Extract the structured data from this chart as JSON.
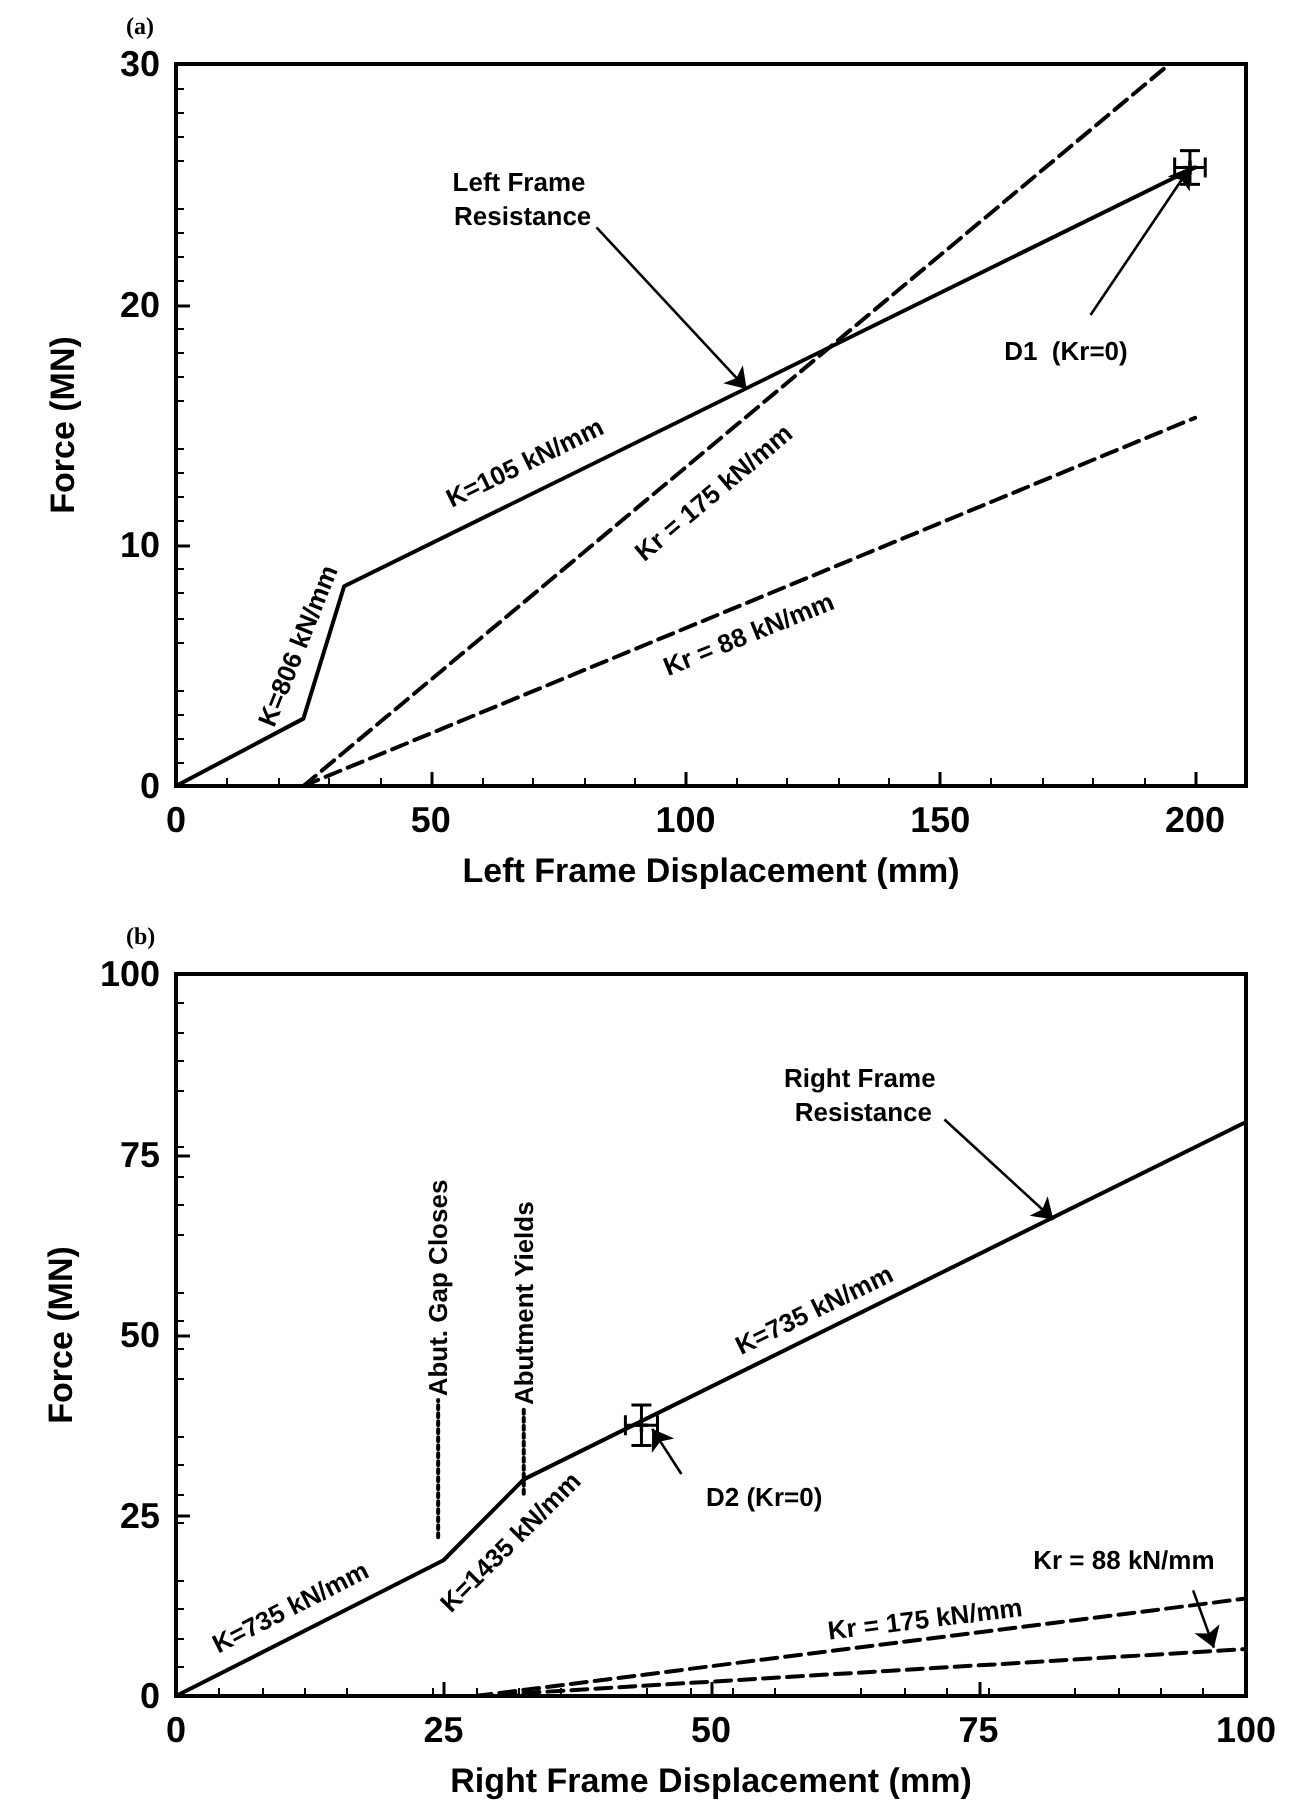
{
  "chart_data": [
    {
      "type": "line",
      "title": "(a)",
      "xlabel": "Left Frame Displacement (mm)",
      "ylabel": "Force (MN)",
      "xlim": [
        0,
        210
      ],
      "xticks": [
        0,
        50,
        100,
        150,
        200
      ],
      "ylim": [
        0,
        30
      ],
      "yticks": [
        0,
        10,
        20,
        30
      ],
      "grid": false,
      "marker": "none",
      "series": [
        {
          "x": [
            0,
            25,
            33,
            200
          ],
          "values": [
            0,
            2.8,
            8.3,
            25.7
          ],
          "color": "#000000",
          "line_style": "solid"
        },
        {
          "x": [
            25,
            195
          ],
          "values": [
            0,
            30
          ],
          "color": "#000000",
          "line_style": "dashed"
        },
        {
          "x": [
            25,
            200
          ],
          "values": [
            0,
            15.3
          ],
          "color": "#000000",
          "line_style": "dashed"
        },
        {
          "type": "scatter",
          "x": [
            199
          ],
          "values": [
            25.7
          ],
          "errors": [
            0.7
          ],
          "xerrors": [
            3
          ],
          "color": "#000000",
          "marker": "cross"
        }
      ],
      "annotations": [
        {
          "text": "Left Frame Resistance",
          "x": 112,
          "y": 16.5
        },
        {
          "text": "D1  (Kr=0)",
          "x": 199,
          "y": 25.7
        },
        {
          "text": "K=806 kN/mm",
          "x": 29,
          "y": 5.5
        },
        {
          "text": "K=105 kN/mm",
          "x": 70,
          "y": 12.2
        },
        {
          "text": "Kr = 175 kN/mm",
          "x": 100,
          "y": 13.2
        },
        {
          "text": "Kr = 88 kN/mm",
          "x": 110,
          "y": 7.4
        }
      ]
    },
    {
      "type": "line",
      "title": "(b)",
      "xlabel": "Right Frame Displacement (mm)",
      "ylabel": "Force (MN)",
      "xlim": [
        0,
        100
      ],
      "xticks": [
        0,
        25,
        50,
        75,
        100
      ],
      "ylim": [
        0,
        100
      ],
      "yticks": [
        0,
        25,
        50,
        75,
        100
      ],
      "grid": false,
      "marker": "none",
      "series": [
        {
          "x": [
            0,
            25,
            32.5,
            100
          ],
          "values": [
            0,
            18.8,
            30,
            79.5
          ],
          "color": "#000000",
          "line_style": "solid"
        },
        {
          "x": [
            28,
            100
          ],
          "values": [
            0,
            13.5
          ],
          "color": "#000000",
          "line_style": "dashed"
        },
        {
          "x": [
            28,
            100
          ],
          "values": [
            0,
            6.5
          ],
          "color": "#000000",
          "line_style": "dashed"
        },
        {
          "x": [
            24.5,
            24.5
          ],
          "values": [
            22,
            41
          ],
          "color": "#000000",
          "line_style": "dotted"
        },
        {
          "x": [
            32.5,
            32.5
          ],
          "values": [
            28,
            40
          ],
          "color": "#000000",
          "line_style": "dotted"
        },
        {
          "type": "scatter",
          "x": [
            43.5
          ],
          "values": [
            37.5
          ],
          "errors": [
            2.8
          ],
          "xerrors": [
            1.5
          ],
          "color": "#000000",
          "marker": "cross"
        }
      ],
      "annotations": [
        {
          "text": "Right Frame Resistance",
          "x": 82,
          "y": 66
        },
        {
          "text": "D2 (Kr=0)",
          "x": 44.5,
          "y": 37
        },
        {
          "text": "Kr = 88 kN/mm",
          "x": 97,
          "y": 6.7
        },
        {
          "text": "Kr = 175 kN/mm",
          "x": 70,
          "y": 7.9
        },
        {
          "text": "Abut. Gap Closes",
          "x": 24.5,
          "y": 41
        },
        {
          "text": "Abutment Yields",
          "x": 32.5,
          "y": 40
        },
        {
          "text": "K=735 kN/mm",
          "x": 12,
          "y": 9
        },
        {
          "text": "K=1435 kN/mm",
          "x": 29,
          "y": 24.4
        },
        {
          "text": "K=735 kN/mm",
          "x": 60,
          "y": 50.2
        }
      ]
    }
  ]
}
